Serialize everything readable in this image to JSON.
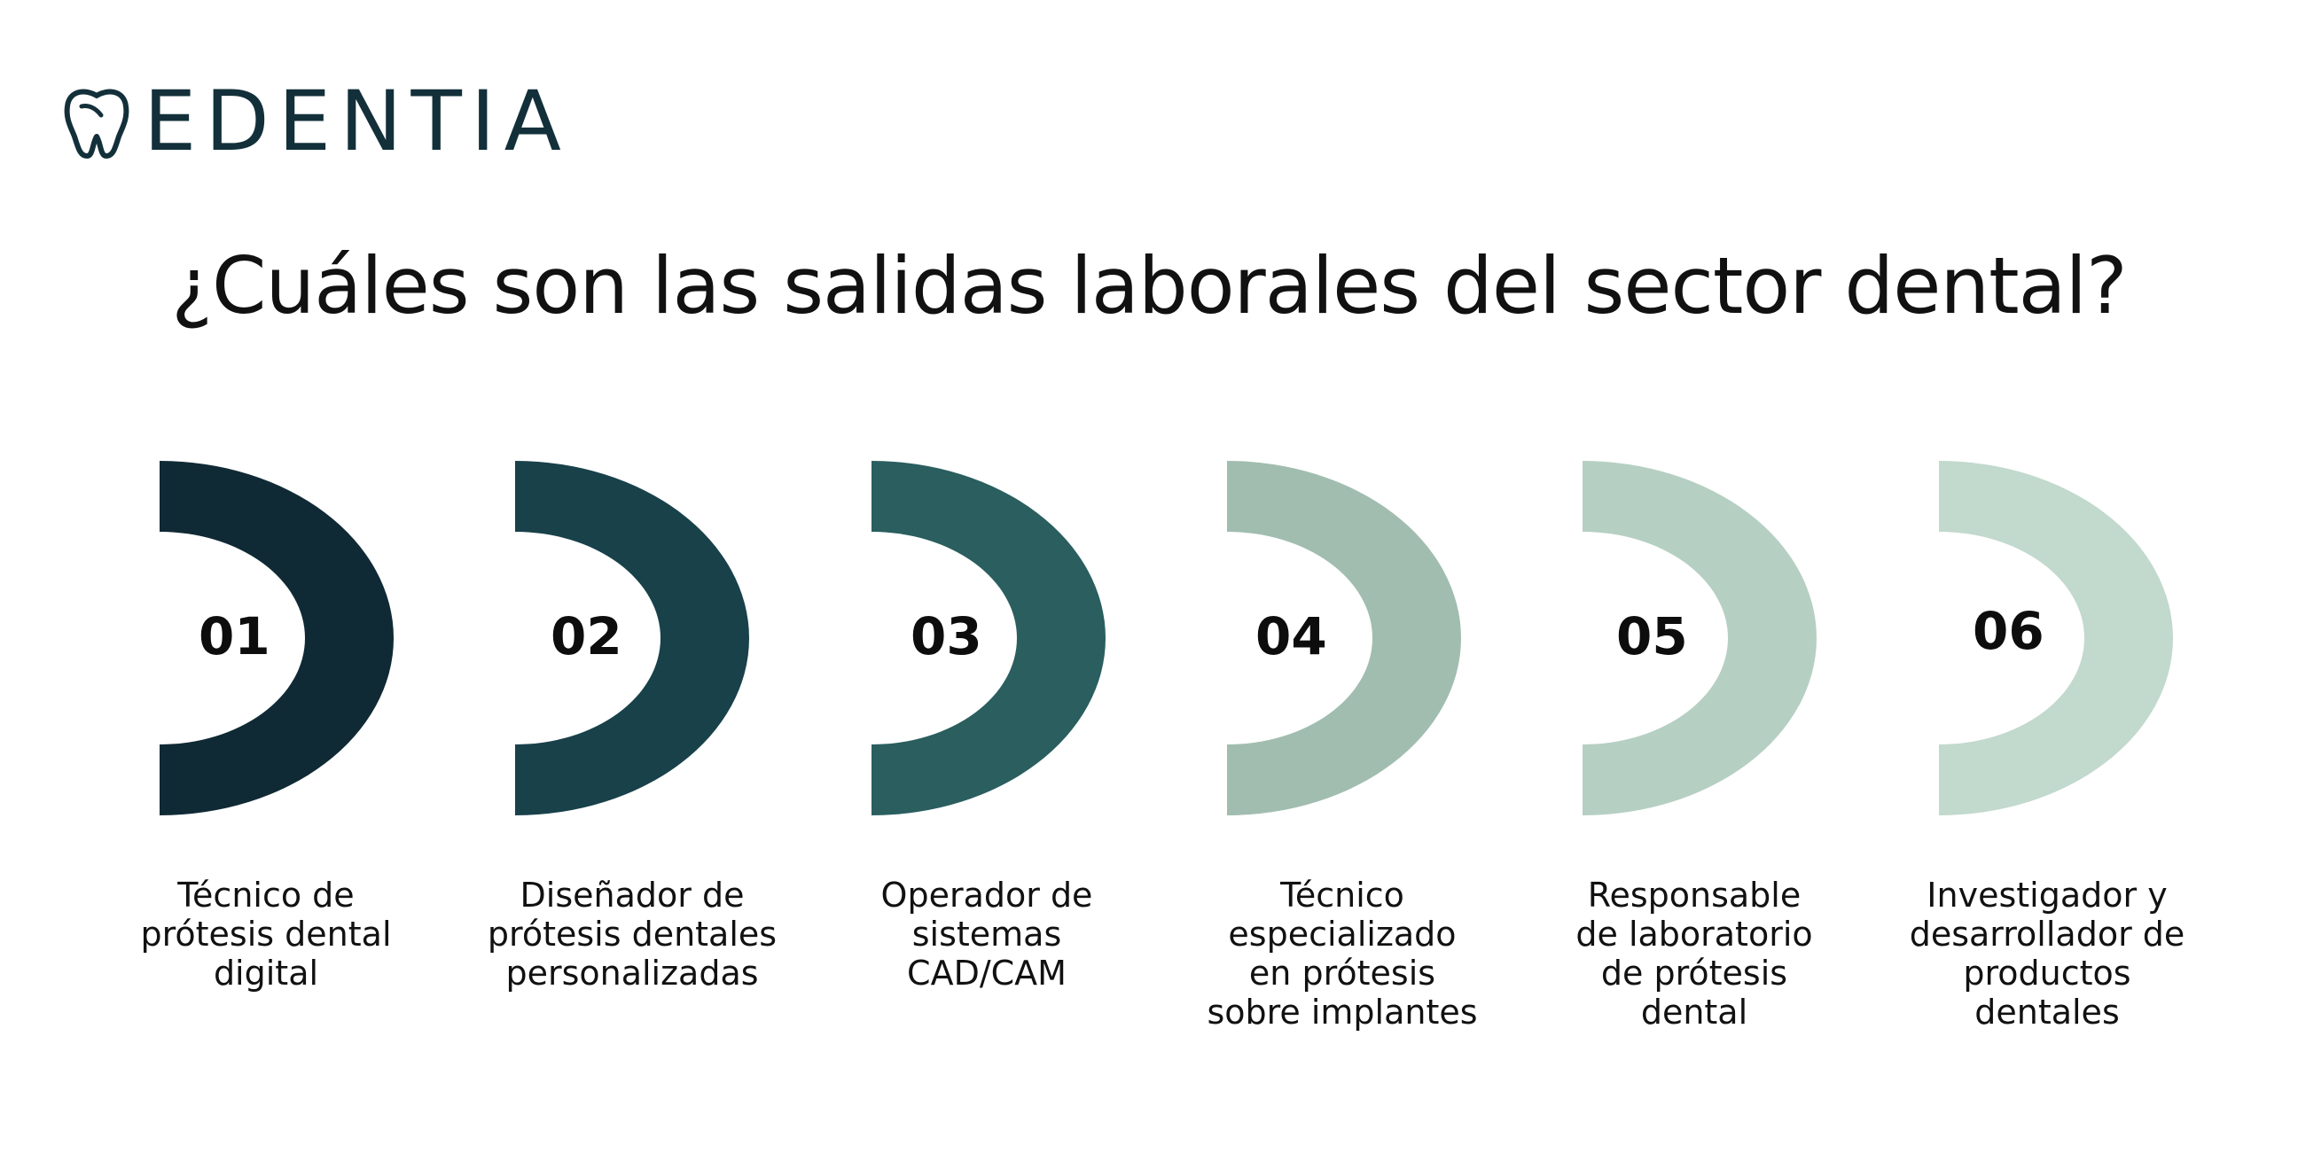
{
  "brand": {
    "name": "EDENTIA",
    "icon": "tooth-icon",
    "color": "#13303a"
  },
  "title": "¿Cuáles son las salidas laborales del sector dental?",
  "steps": [
    {
      "number": "01",
      "label": "Técnico de\nprótesis dental\ndigital",
      "color": "#102a35"
    },
    {
      "number": "02",
      "label": "Diseñador de\nprótesis dentales\npersonalizadas",
      "color": "#18414a"
    },
    {
      "number": "03",
      "label": "Operador de\nsistemas\nCAD/CAM",
      "color": "#2a5e5f"
    },
    {
      "number": "04",
      "label": "Técnico\nespecializado\nen prótesis\nsobre implantes",
      "color": "#a1bdb0"
    },
    {
      "number": "05",
      "label": "Responsable\nde laboratorio\nde prótesis\ndental",
      "color": "#b6cfc3"
    },
    {
      "number": "06",
      "label": "Investigador y\ndesarrollador de\nproductos\ndentales",
      "color": "#c2d9cd"
    }
  ]
}
